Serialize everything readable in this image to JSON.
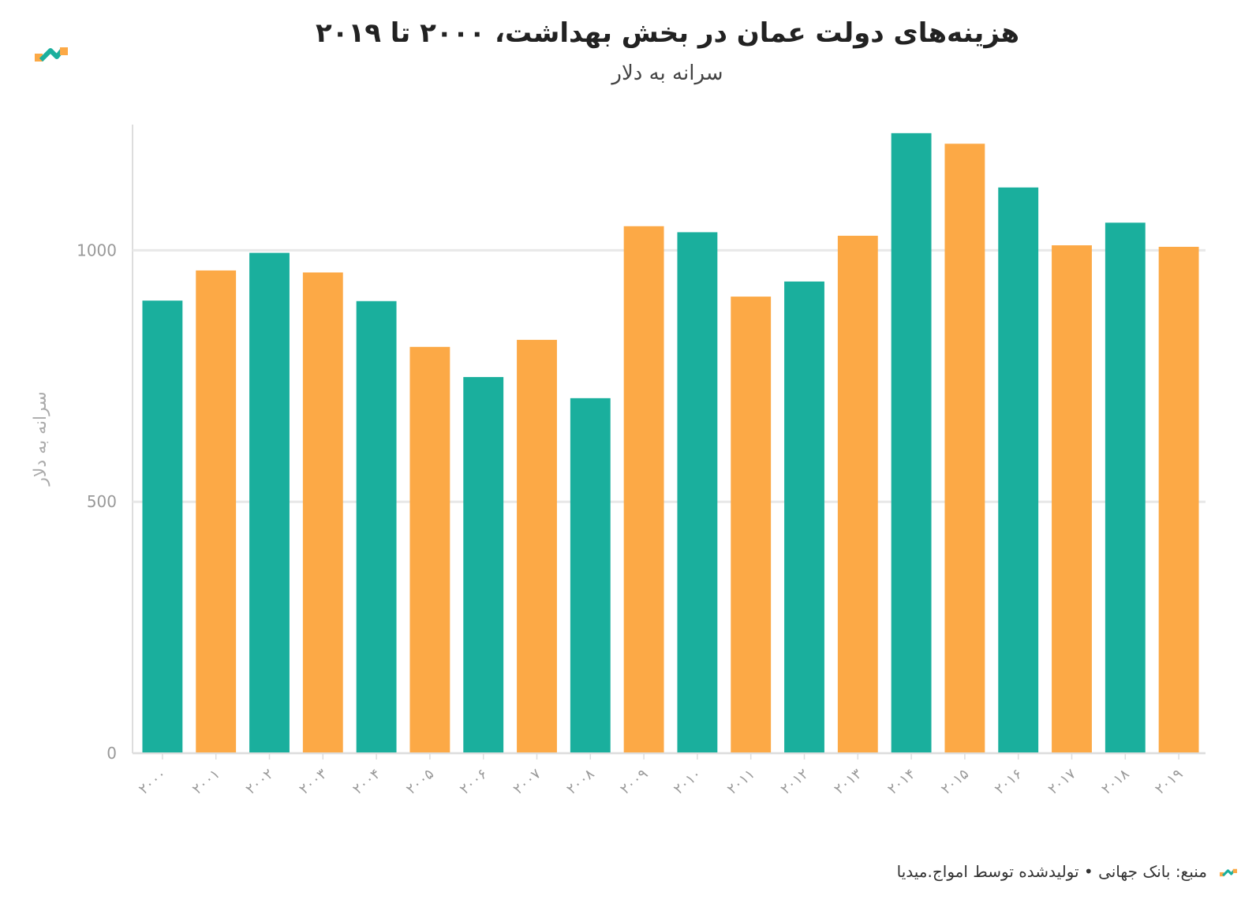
{
  "header": {
    "title": "هزینه‌های دولت عمان در بخش بهداشت، ۲۰۰۰ تا ۲۰۱۹",
    "subtitle": "سرانه به دلار"
  },
  "footer": {
    "source": "منبع: بانک جهانی • تولیدشده توسط امواج.میدیا"
  },
  "colors": {
    "teal": "#1aaf9d",
    "orange": "#fca946",
    "grid": "#e8e8e8",
    "axis": "#dddddd"
  },
  "chart_data": {
    "type": "bar",
    "ylabel": "سرانه به دلار",
    "xlabel": "",
    "ylim": [
      0,
      1250
    ],
    "yticks": [
      "0",
      "500",
      "1000"
    ],
    "ytick_values": [
      0,
      500,
      1000
    ],
    "categories": [
      "۲۰۰۰",
      "۲۰۰۱",
      "۲۰۰۲",
      "۲۰۰۳",
      "۲۰۰۴",
      "۲۰۰۵",
      "۲۰۰۶",
      "۲۰۰۷",
      "۲۰۰۸",
      "۲۰۰۹",
      "۲۰۱۰",
      "۲۰۱۱",
      "۲۰۱۲",
      "۲۰۱۳",
      "۲۰۱۴",
      "۲۰۱۵",
      "۲۰۱۶",
      "۲۰۱۷",
      "۲۰۱۸",
      "۲۰۱۹"
    ],
    "values": [
      900,
      960,
      995,
      956,
      899,
      808,
      748,
      822,
      706,
      1048,
      1036,
      908,
      938,
      1029,
      1233,
      1212,
      1125,
      1010,
      1055,
      1007
    ],
    "bar_colors": [
      "teal",
      "orange",
      "teal",
      "orange",
      "teal",
      "orange",
      "teal",
      "orange",
      "teal",
      "orange",
      "teal",
      "orange",
      "teal",
      "orange",
      "teal",
      "orange",
      "teal",
      "orange",
      "teal",
      "orange"
    ],
    "grid": true,
    "legend": "none"
  }
}
